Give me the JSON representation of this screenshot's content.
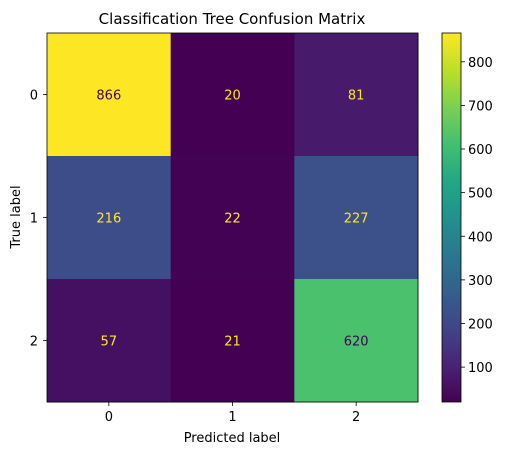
{
  "chart_data": {
    "type": "heatmap",
    "title": "Classification Tree Confusion Matrix",
    "xlabel": "Predicted label",
    "ylabel": "True label",
    "x_categories": [
      "0",
      "1",
      "2"
    ],
    "y_categories": [
      "0",
      "1",
      "2"
    ],
    "matrix": [
      [
        866,
        20,
        81
      ],
      [
        216,
        22,
        227
      ],
      [
        57,
        21,
        620
      ]
    ],
    "colormap": "viridis",
    "colorbar": {
      "range": [
        20,
        866
      ],
      "ticks": [
        100,
        200,
        300,
        400,
        500,
        600,
        700,
        800
      ]
    },
    "grid": false
  }
}
